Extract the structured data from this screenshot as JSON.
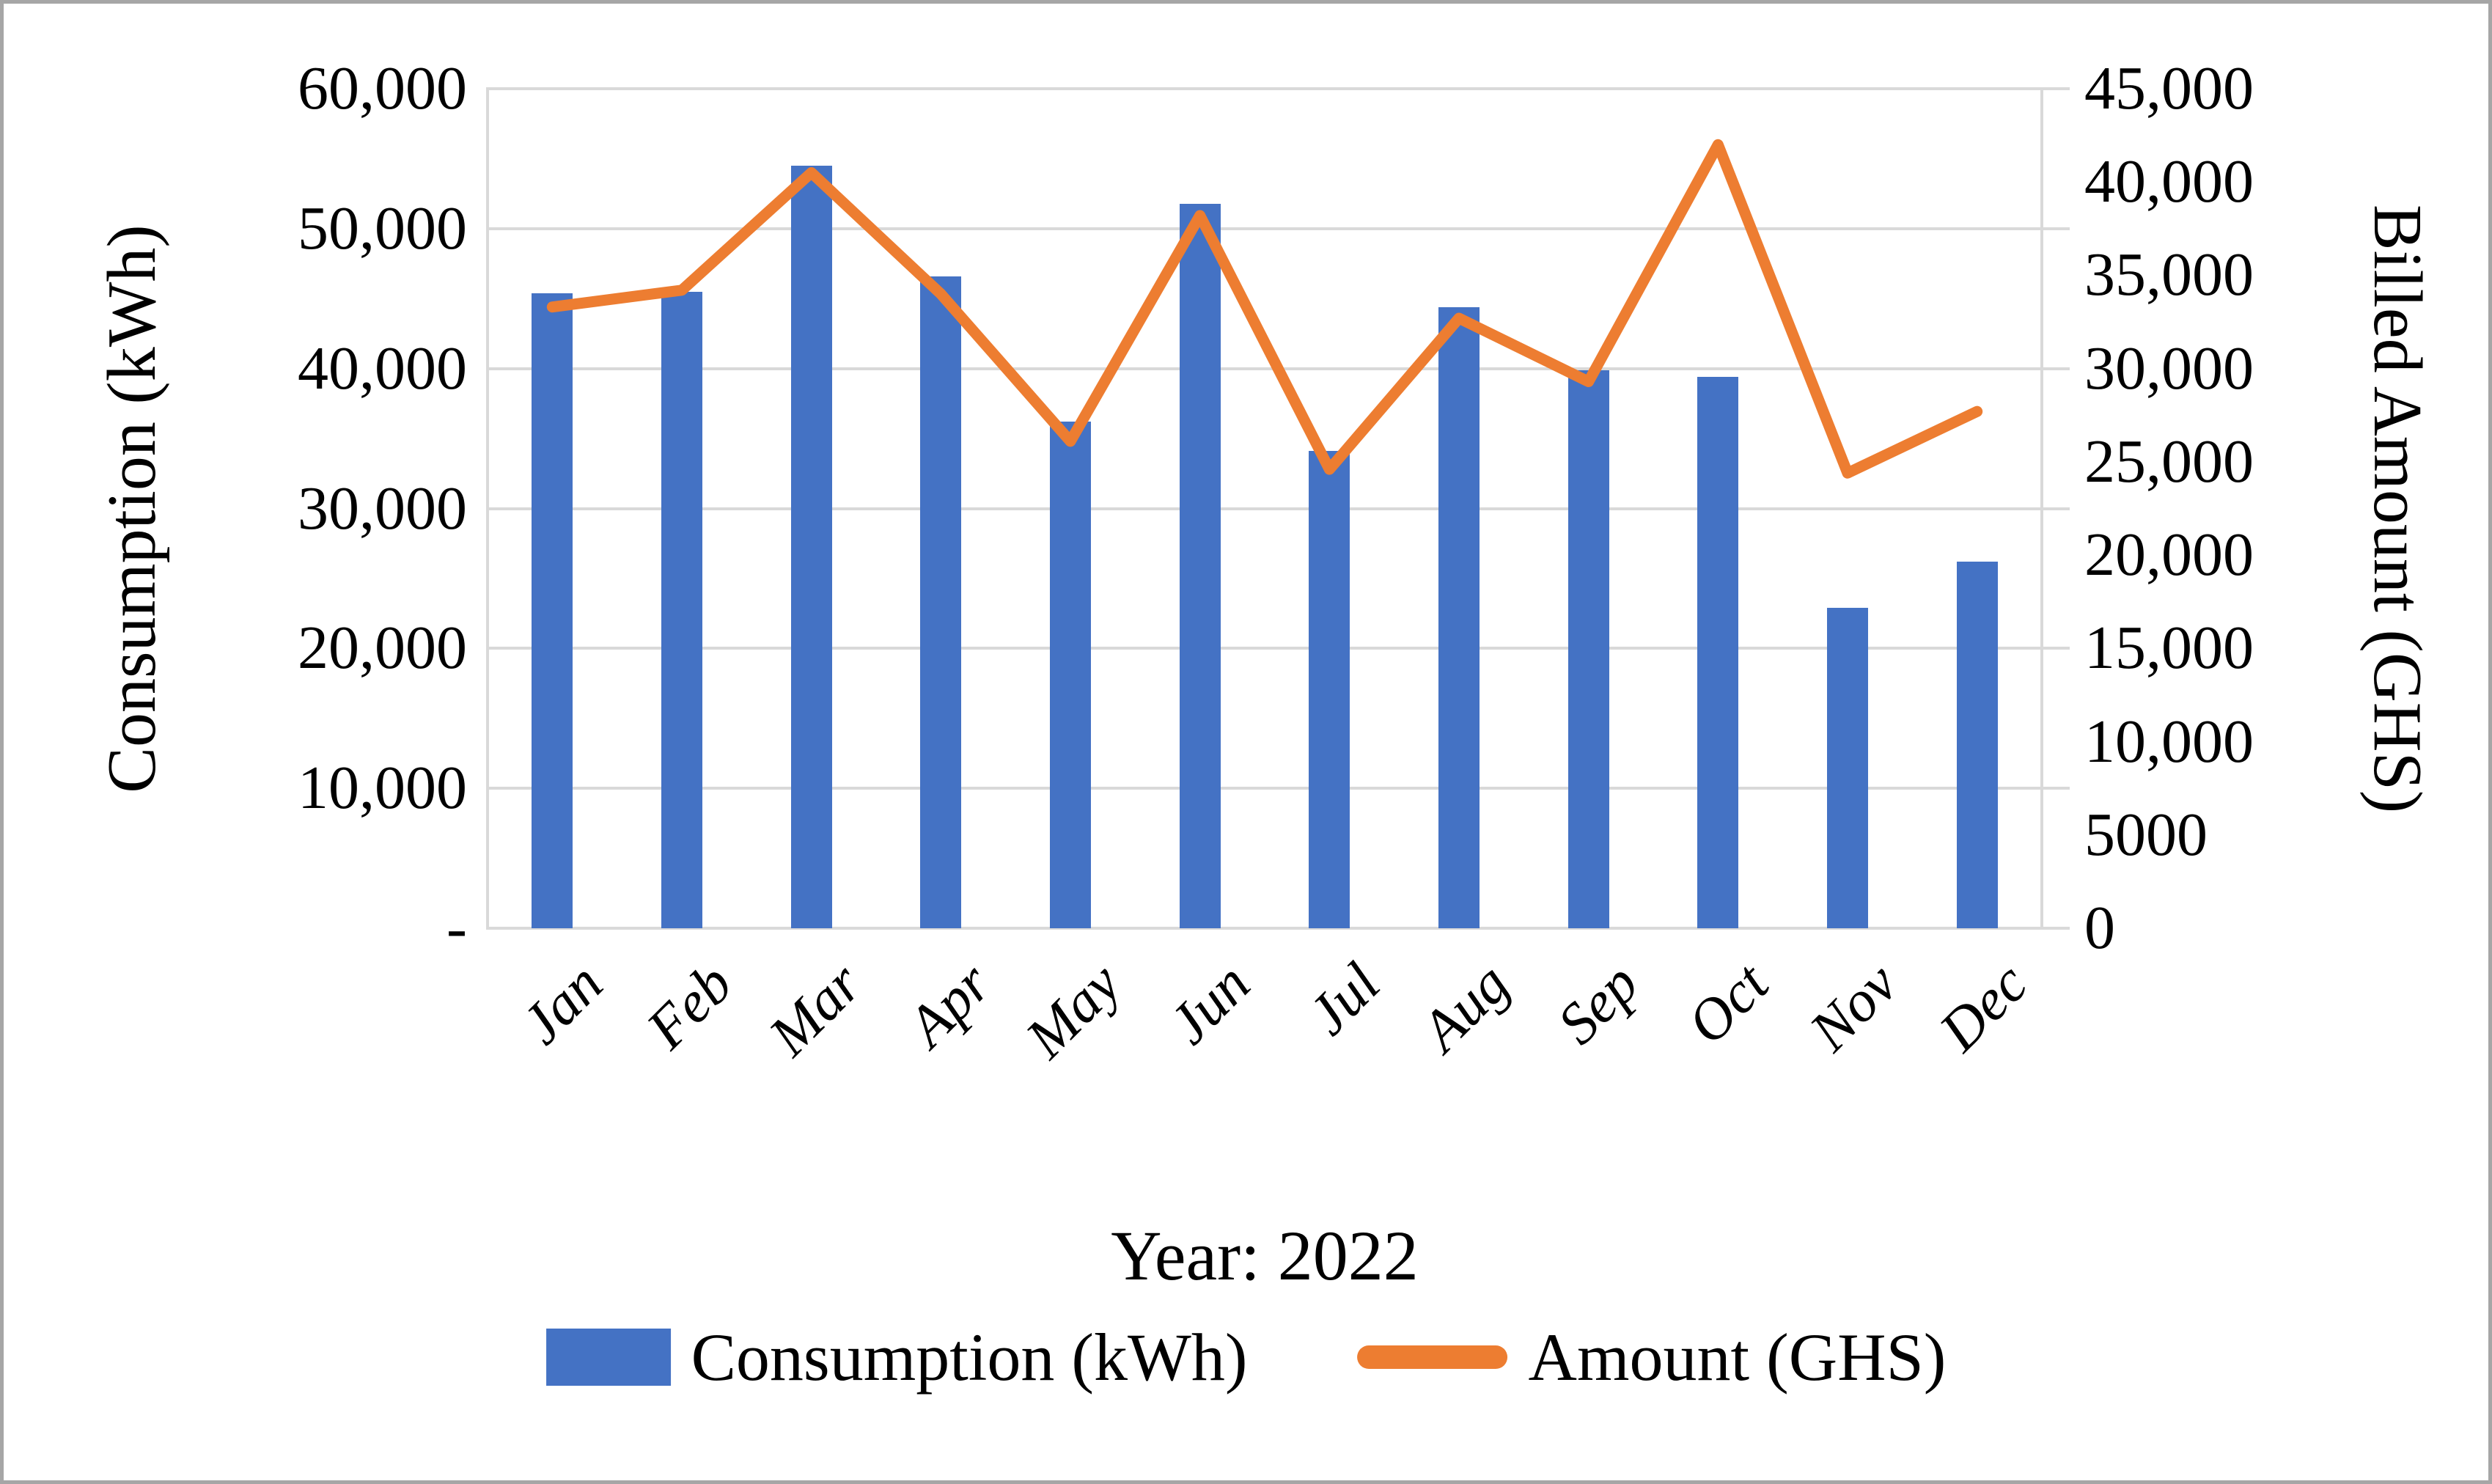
{
  "figure": {
    "x_axis_caption": "Year: 2022",
    "left_axis_title": "Consumption (kWh)",
    "right_axis_title": "Billed Amount (GHS)"
  },
  "legend": {
    "items": [
      {
        "label": "Consumption (kWh)",
        "swatch": "bar-swatch",
        "color": "#4472C4"
      },
      {
        "label": "Amount (GHS)",
        "swatch": "line-swatch",
        "color": "#ED7D31"
      }
    ]
  },
  "colors": {
    "bar": "#4472C4",
    "line": "#ED7D31",
    "gridline": "#D9D9D9",
    "frame_border": "#A6A6A6",
    "text": "#000000"
  },
  "chart_data": {
    "type": "combo-bar-line",
    "title": "",
    "xlabel": "Year: 2022",
    "categories": [
      "Jan",
      "Feb",
      "Mar",
      "Apr",
      "May",
      "Jun",
      "Jul",
      "Aug",
      "Sep",
      "Oct",
      "Nov",
      "Dec"
    ],
    "series": [
      {
        "name": "Consumption (kWh)",
        "type": "bar",
        "axis": "left",
        "color": "#4472C4",
        "values": [
          45400,
          45500,
          54500,
          46600,
          36200,
          51800,
          34100,
          44400,
          39900,
          39400,
          22900,
          26200
        ]
      },
      {
        "name": "Amount (GHS)",
        "type": "line",
        "axis": "right",
        "color": "#ED7D31",
        "values": [
          33300,
          34200,
          40500,
          34000,
          26100,
          38200,
          24600,
          32700,
          29300,
          42000,
          24400,
          27700
        ]
      }
    ],
    "left_axis": {
      "title": "Consumption (kWh)",
      "min": 0,
      "max": 60000,
      "tick_labels": [
        "60,000",
        "50,000",
        "40,000",
        "30,000",
        "20,000",
        "10,000",
        "-"
      ]
    },
    "right_axis": {
      "title": "Billed Amount (GHS)",
      "min": 0,
      "max": 45000,
      "tick_labels": [
        "45,000",
        "40,000",
        "35,000",
        "30,000",
        "25,000",
        "20,000",
        "15,000",
        "10,000",
        "5000",
        "0"
      ]
    },
    "grid": true,
    "legend_position": "bottom"
  }
}
